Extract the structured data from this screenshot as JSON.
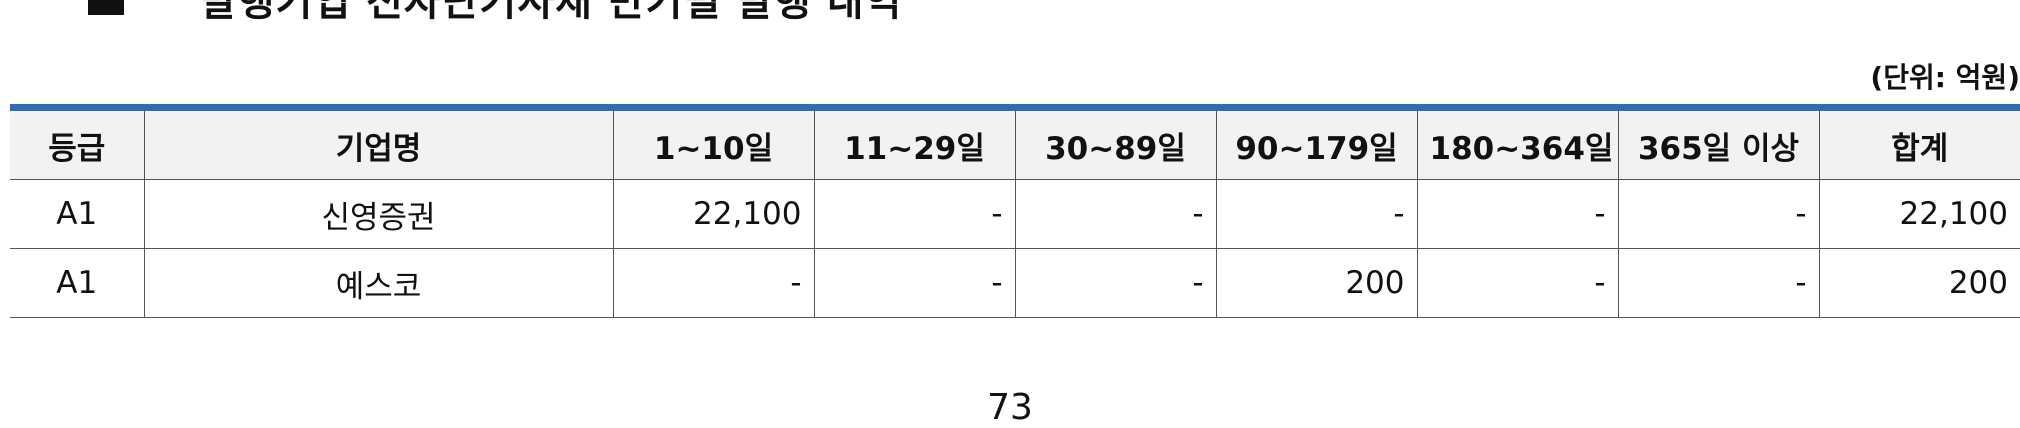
{
  "document": {
    "title": "발행기업 전자단기사채 만기별 발행 내역",
    "unit": "(단위: 억원)",
    "page_number": "73"
  },
  "table": {
    "headers": [
      "등급",
      "기업명",
      "1~10일",
      "11~29일",
      "30~89일",
      "90~179일",
      "180~364일",
      "365일 이상",
      "합계"
    ],
    "rows": [
      [
        "A1",
        "신영증권",
        "22,100",
        "-",
        "-",
        "-",
        "-",
        "-",
        "22,100"
      ],
      [
        "A1",
        "예스코",
        "-",
        "-",
        "-",
        "200",
        "-",
        "-",
        "200"
      ]
    ]
  }
}
